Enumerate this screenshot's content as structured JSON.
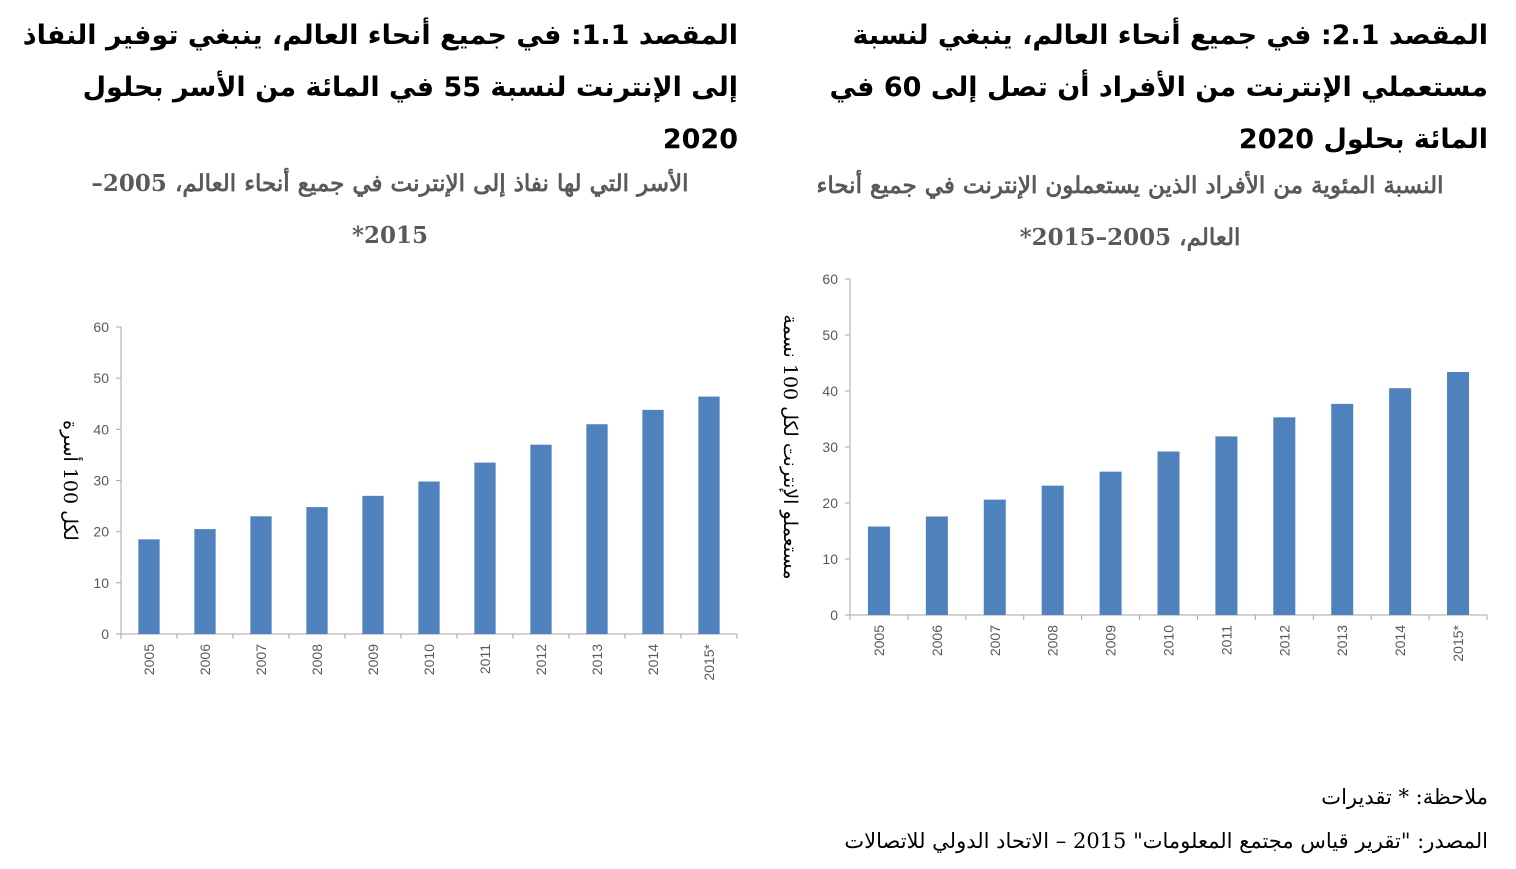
{
  "headings": {
    "left": "المقصد 1.1: في جميع أنحاء العالم، ينبغي توفير النفاذ إلى الإنترنت لنسبة 55 في المائة من الأسر بحلول 2020",
    "right": "المقصد 2.1: في جميع أنحاء العالم، ينبغي لنسبة مستعملي الإنترنت من الأفراد أن تصل إلى 60 في المائة بحلول 2020"
  },
  "footer": {
    "note": "ملاحظة: * تقديرات",
    "source": "المصدر: \"تقرير قياس مجتمع المعلومات\" 2015 – الاتحاد الدولي للاتصالات"
  },
  "colors": {
    "bar": "#4f81bd",
    "axis": "#a6a6a6",
    "tick_text": "#595959"
  },
  "chart_data": [
    {
      "type": "bar",
      "title": "الأسر التي لها نفاذ إلى الإنترنت في جميع أنحاء العالم، 2005–2015*",
      "xlabel": "",
      "ylabel": "لكل 100 أسرة",
      "categories": [
        "2005",
        "2006",
        "2007",
        "2008",
        "2009",
        "2010",
        "2011",
        "2012",
        "2013",
        "2014",
        "2015*"
      ],
      "values": [
        18.5,
        20.5,
        23,
        24.8,
        27,
        29.8,
        33.5,
        37,
        41,
        43.8,
        46.4
      ],
      "ylim": [
        0,
        60
      ],
      "yticks": [
        0,
        10,
        20,
        30,
        40,
        50,
        60
      ],
      "grid": false,
      "legend": "none"
    },
    {
      "type": "bar",
      "title": "النسبة المئوية من الأفراد الذين يستعملون الإنترنت في جميع أنحاء العالم، 2005–2015*",
      "xlabel": "",
      "ylabel": "مستعملو الإنترنت لكل 100 نسمة",
      "categories": [
        "2005",
        "2006",
        "2007",
        "2008",
        "2009",
        "2010",
        "2011",
        "2012",
        "2013",
        "2014",
        "2015*"
      ],
      "values": [
        15.8,
        17.6,
        20.6,
        23.1,
        25.6,
        29.2,
        31.9,
        35.3,
        37.7,
        40.5,
        43.4
      ],
      "ylim": [
        0,
        60
      ],
      "yticks": [
        0,
        10,
        20,
        30,
        40,
        50,
        60
      ],
      "grid": false,
      "legend": "none"
    }
  ]
}
